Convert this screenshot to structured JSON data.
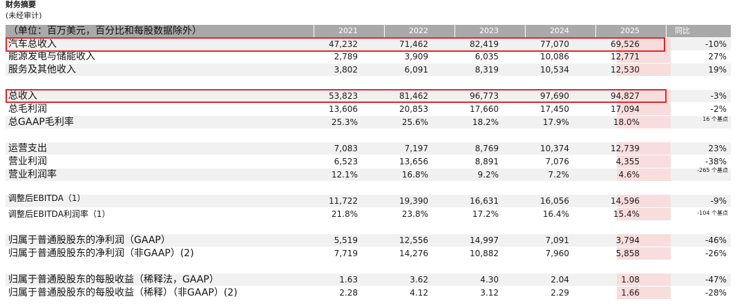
{
  "title": "财务摘要",
  "subtitle": "(未经审计)",
  "header": {
    "unit_label": "（单位：百万美元，百分比和每股数据除外）",
    "years": [
      "2021",
      "2022",
      "2023",
      "2024",
      "2025"
    ],
    "yoy_label": "同比"
  },
  "rows": [
    {
      "label": "汽车总收入",
      "values": [
        "47,232",
        "71,462",
        "82,419",
        "77,070",
        "69,526"
      ],
      "yoy": "-10%"
    },
    {
      "label": "能源发电与储能收入",
      "values": [
        "2,789",
        "3,909",
        "6,035",
        "10,086",
        "12,771"
      ],
      "yoy": "27%"
    },
    {
      "label": "服务及其他收入",
      "values": [
        "3,802",
        "6,091",
        "8,319",
        "10,534",
        "12,530"
      ],
      "yoy": "19%"
    },
    {
      "label": "总收入",
      "values": [
        "53,823",
        "81,462",
        "96,773",
        "97,690",
        "94,827"
      ],
      "yoy": "-3%"
    },
    {
      "label": "总毛利润",
      "values": [
        "13,606",
        "20,853",
        "17,660",
        "17,450",
        "17,094"
      ],
      "yoy": "-2%"
    },
    {
      "label": "总GAAP毛利率",
      "values": [
        "25.3%",
        "25.6%",
        "18.2%",
        "17.9%",
        "18.0%"
      ],
      "yoy": "16 个基点"
    },
    {
      "label": "运营支出",
      "values": [
        "7,083",
        "7,197",
        "8,769",
        "10,374",
        "12,739"
      ],
      "yoy": "23%"
    },
    {
      "label": "营业利润",
      "values": [
        "6,523",
        "13,656",
        "8,891",
        "7,076",
        "4,355"
      ],
      "yoy": "-38%"
    },
    {
      "label": "营业利润率",
      "values": [
        "12.1%",
        "16.8%",
        "9.2%",
        "7.2%",
        "4.6%"
      ],
      "yoy": "-265 个基点"
    },
    {
      "label": "调整后EBITDA（1）",
      "values": [
        "11,722",
        "19,390",
        "16,631",
        "16,056",
        "14,596"
      ],
      "yoy": "-9%"
    },
    {
      "label": "调整后EBITDA利润率（1）",
      "values": [
        "21.8%",
        "23.8%",
        "17.2%",
        "16.4%",
        "15.4%"
      ],
      "yoy": "-104 个基点"
    },
    {
      "label": "归属于普通股股东的净利润（GAAP）",
      "values": [
        "5,519",
        "12,556",
        "14,997",
        "7,091",
        "3,794"
      ],
      "yoy": "-46%"
    },
    {
      "label": "归属于普通股股东的净利润（非GAAP）(2)",
      "values": [
        "7,719",
        "14,276",
        "10,882",
        "7,960",
        "5,858"
      ],
      "yoy": "-26%"
    },
    {
      "label": "归属于普通股股东的每股收益（稀释法，GAAP）",
      "values": [
        "1.63",
        "3.62",
        "4.30",
        "2.04",
        "1.08"
      ],
      "yoy": "-47%"
    },
    {
      "label": "归属于普通股股东的每股收益（稀释）（非GAAP）(2)",
      "values": [
        "2.28",
        "4.12",
        "3.12",
        "2.29",
        "1.66"
      ],
      "yoy": "-28%"
    }
  ]
}
